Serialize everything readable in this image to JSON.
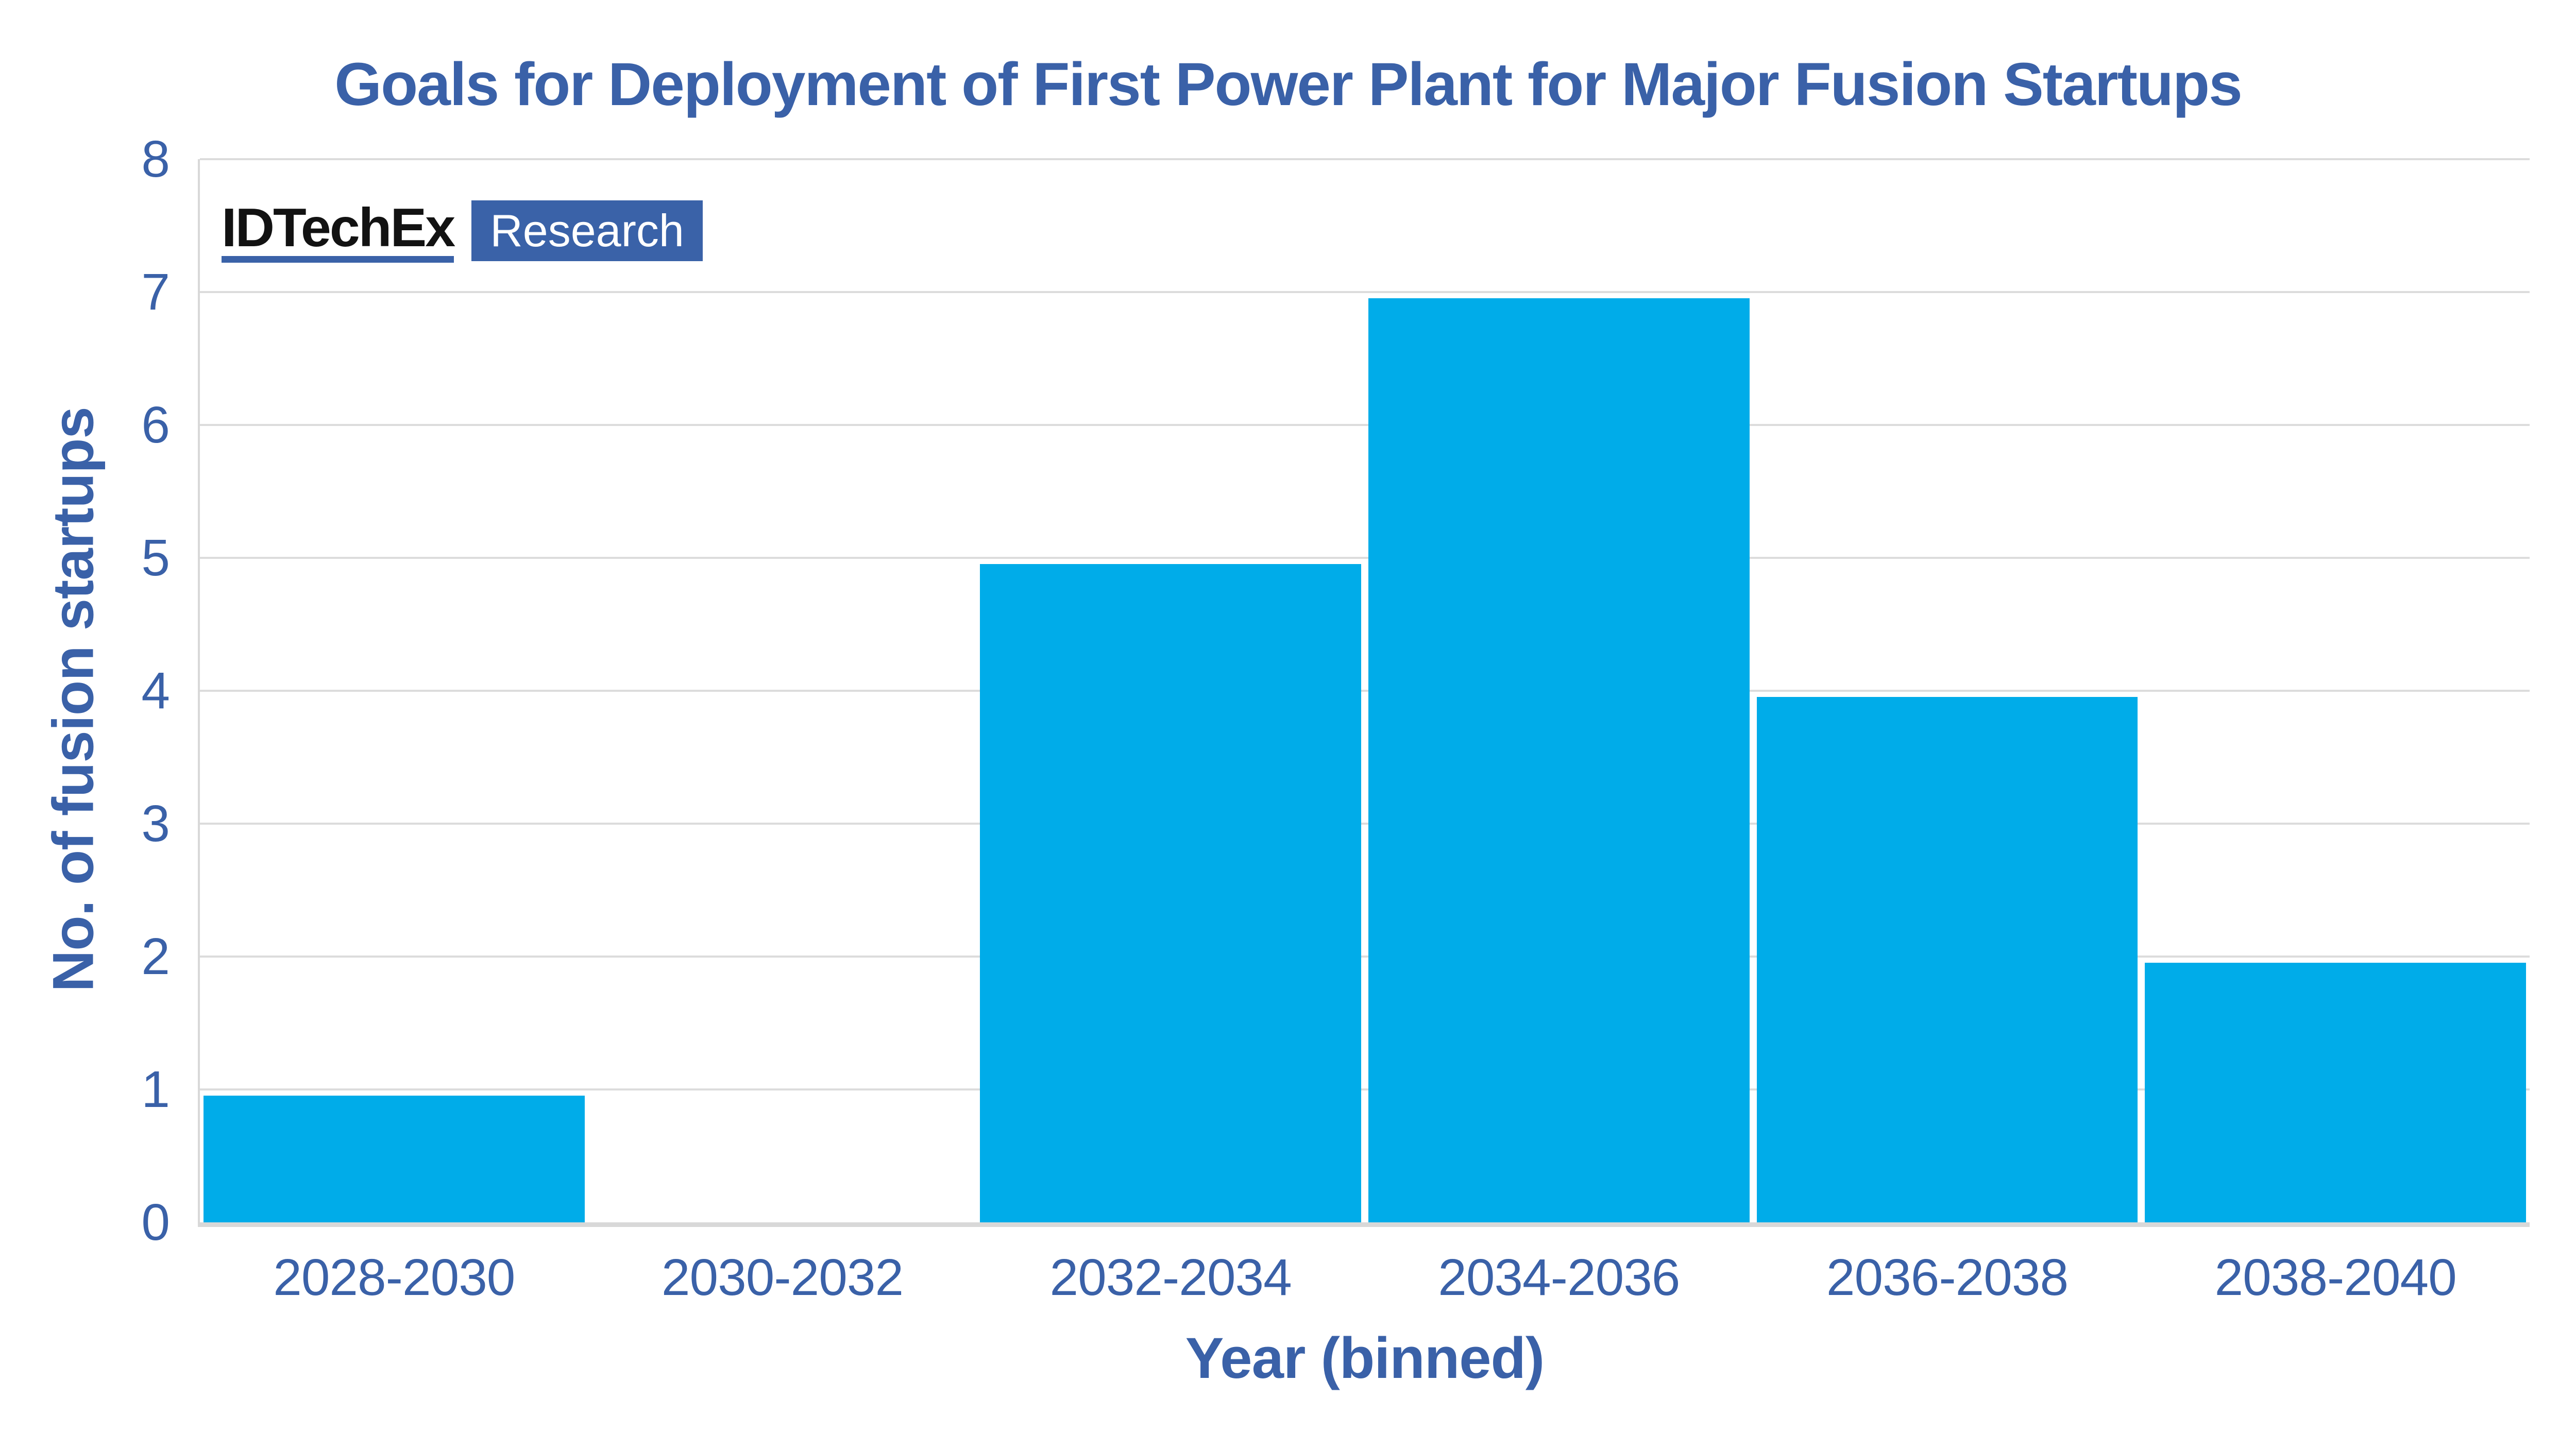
{
  "title": "Goals for Deployment of First Power Plant for Major Fusion Startups",
  "logo": {
    "brand": "IDTechEx",
    "suffix": "Research"
  },
  "colors": {
    "text_blue": "#3A61A8",
    "logo_blue": "#3A62A8",
    "bar_cyan": "#00ACE9",
    "gridline_gray": "#DCDCDC",
    "axis_gray": "#D8D8D8"
  },
  "chart_data": {
    "type": "bar",
    "title": "Goals for Deployment of First Power Plant for Major Fusion Startups",
    "categories": [
      "2028-2030",
      "2030-2032",
      "2032-2034",
      "2034-2036",
      "2036-2038",
      "2038-2040"
    ],
    "values": [
      1,
      0,
      5,
      7,
      4,
      2
    ],
    "xlabel": "Year (binned)",
    "ylabel": "No. of fusion startups",
    "ylim": [
      0,
      8
    ],
    "yticks": [
      0,
      1,
      2,
      3,
      4,
      5,
      6,
      7,
      8
    ],
    "grid": true,
    "legend": false,
    "bar_color": "#00ACE9"
  }
}
